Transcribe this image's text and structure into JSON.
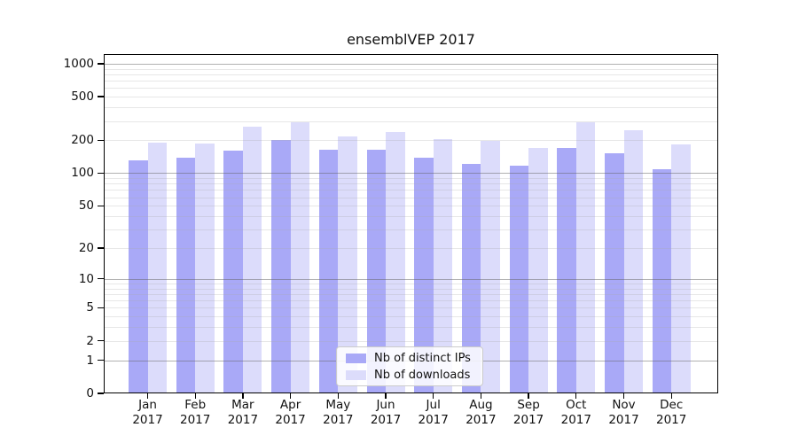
{
  "chart_data": {
    "type": "bar",
    "title": "ensemblVEP 2017",
    "categories": [
      "Jan 2017",
      "Feb 2017",
      "Mar 2017",
      "Apr 2017",
      "May 2017",
      "Jun 2017",
      "Jul 2017",
      "Aug 2017",
      "Sep 2017",
      "Oct 2017",
      "Nov 2017",
      "Dec 2017"
    ],
    "series": [
      {
        "name": "Nb of distinct IPs",
        "color": "#a9a9f7",
        "values": [
          132,
          138,
          160,
          200,
          163,
          163,
          139,
          121,
          116,
          170,
          151,
          109
        ]
      },
      {
        "name": "Nb of downloads",
        "color": "#dcdcfb",
        "values": [
          191,
          188,
          268,
          291,
          218,
          236,
          204,
          197,
          169,
          293,
          246,
          185
        ]
      }
    ],
    "xlabel": "",
    "ylabel": "",
    "yscale": "log10(value+1)",
    "yticks": [
      0,
      1,
      2,
      5,
      10,
      20,
      50,
      100,
      200,
      500,
      1000
    ],
    "ytick_labels": [
      "0",
      "1",
      "2",
      "5",
      "10",
      "20",
      "50",
      "100",
      "200",
      "500",
      "1000"
    ],
    "major_grid_values": [
      1,
      10,
      100,
      1000
    ],
    "minor_grid_values": [
      2,
      3,
      4,
      5,
      6,
      7,
      8,
      9,
      20,
      30,
      40,
      50,
      60,
      70,
      80,
      90,
      200,
      300,
      400,
      500,
      600,
      700,
      800,
      900
    ],
    "ylim": [
      0,
      1225
    ],
    "grid": "horizontal",
    "legend_position": "lower center inside plot"
  },
  "colors": {
    "bar_distinct_ips": "#a9a9f7",
    "bar_downloads": "#dcdcfb",
    "major_gridline": "#b1b1b1",
    "minor_gridline": "#e7e7e7",
    "axis": "#000000",
    "background": "#ffffff"
  }
}
